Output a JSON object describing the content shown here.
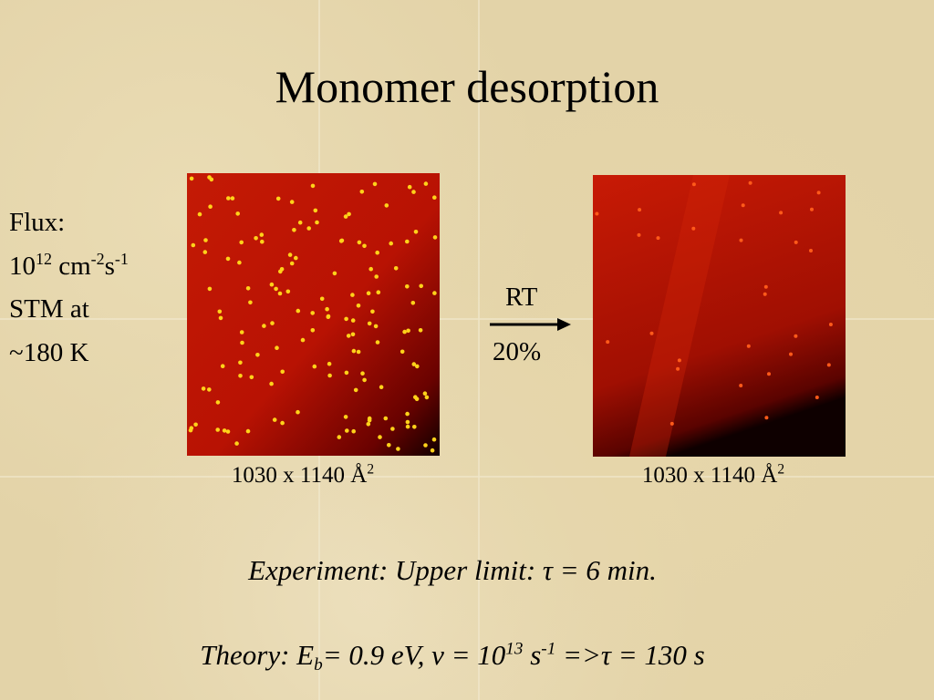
{
  "title": "Monomer desorption",
  "flux": {
    "label": "Flux:",
    "base": "10",
    "base_exp": "12",
    "unit1": " cm",
    "unit1_exp": "-2",
    "unit2": "s",
    "unit2_exp": "-1"
  },
  "stm": {
    "line1": "STM at",
    "line2": "~180 K"
  },
  "arrow": {
    "top": "RT",
    "bottom": "20%"
  },
  "captions": [
    {
      "text": "1030 x 1140 Å",
      "sup": "2"
    },
    {
      "text": "1030 x 1140 Å",
      "sup": "2"
    }
  ],
  "experiment": "Experiment: Upper limit: τ = 6 min.",
  "theory": {
    "a": "Theory: E",
    "sub": "b",
    "b": "= 0.9 eV, ν = 10",
    "exp1": "13",
    "c": " s",
    "exp2": "-1",
    "d": " =>τ = 130 s"
  }
}
